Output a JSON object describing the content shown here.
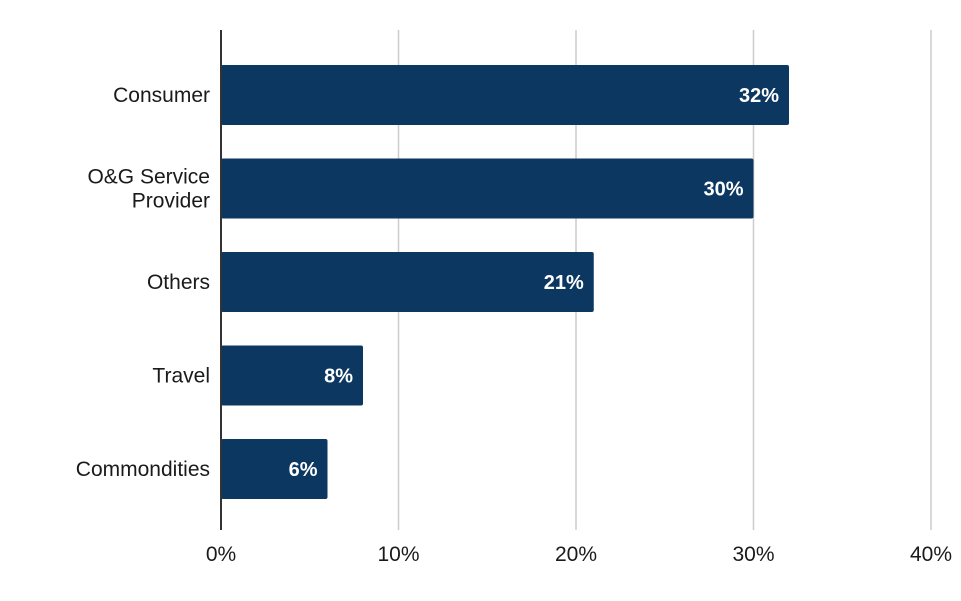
{
  "chart_data": {
    "type": "bar",
    "orientation": "horizontal",
    "categories": [
      [
        "Consumer"
      ],
      [
        "O&G Service",
        "Provider"
      ],
      [
        "Others"
      ],
      [
        "Travel"
      ],
      [
        "Commondities"
      ]
    ],
    "values": [
      32,
      30,
      21,
      8,
      6
    ],
    "data_labels": [
      "32%",
      "30%",
      "21%",
      "8%",
      "6%"
    ],
    "xlim": [
      0,
      40
    ],
    "x_ticks": [
      0,
      10,
      20,
      30,
      40
    ],
    "x_tick_labels": [
      "0%",
      "10%",
      "20%",
      "30%",
      "40%"
    ],
    "grid": true,
    "legend": "none",
    "colors": {
      "bar": "#0b3761",
      "data_label": "#ffffff"
    }
  }
}
